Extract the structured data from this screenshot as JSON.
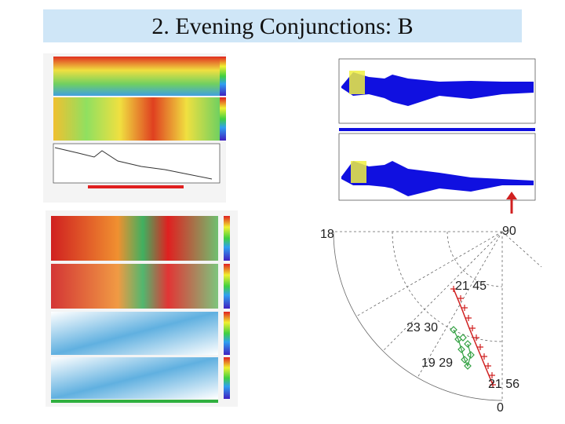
{
  "header": {
    "title": "2. Evening Conjunctions: B"
  },
  "polar": {
    "labels": {
      "left": "18",
      "top": "90",
      "bottom": "0"
    },
    "annotations": {
      "track_start": "21 45",
      "track_end": "21 56",
      "green_start": "23 30",
      "green_end": "19 29"
    }
  }
}
